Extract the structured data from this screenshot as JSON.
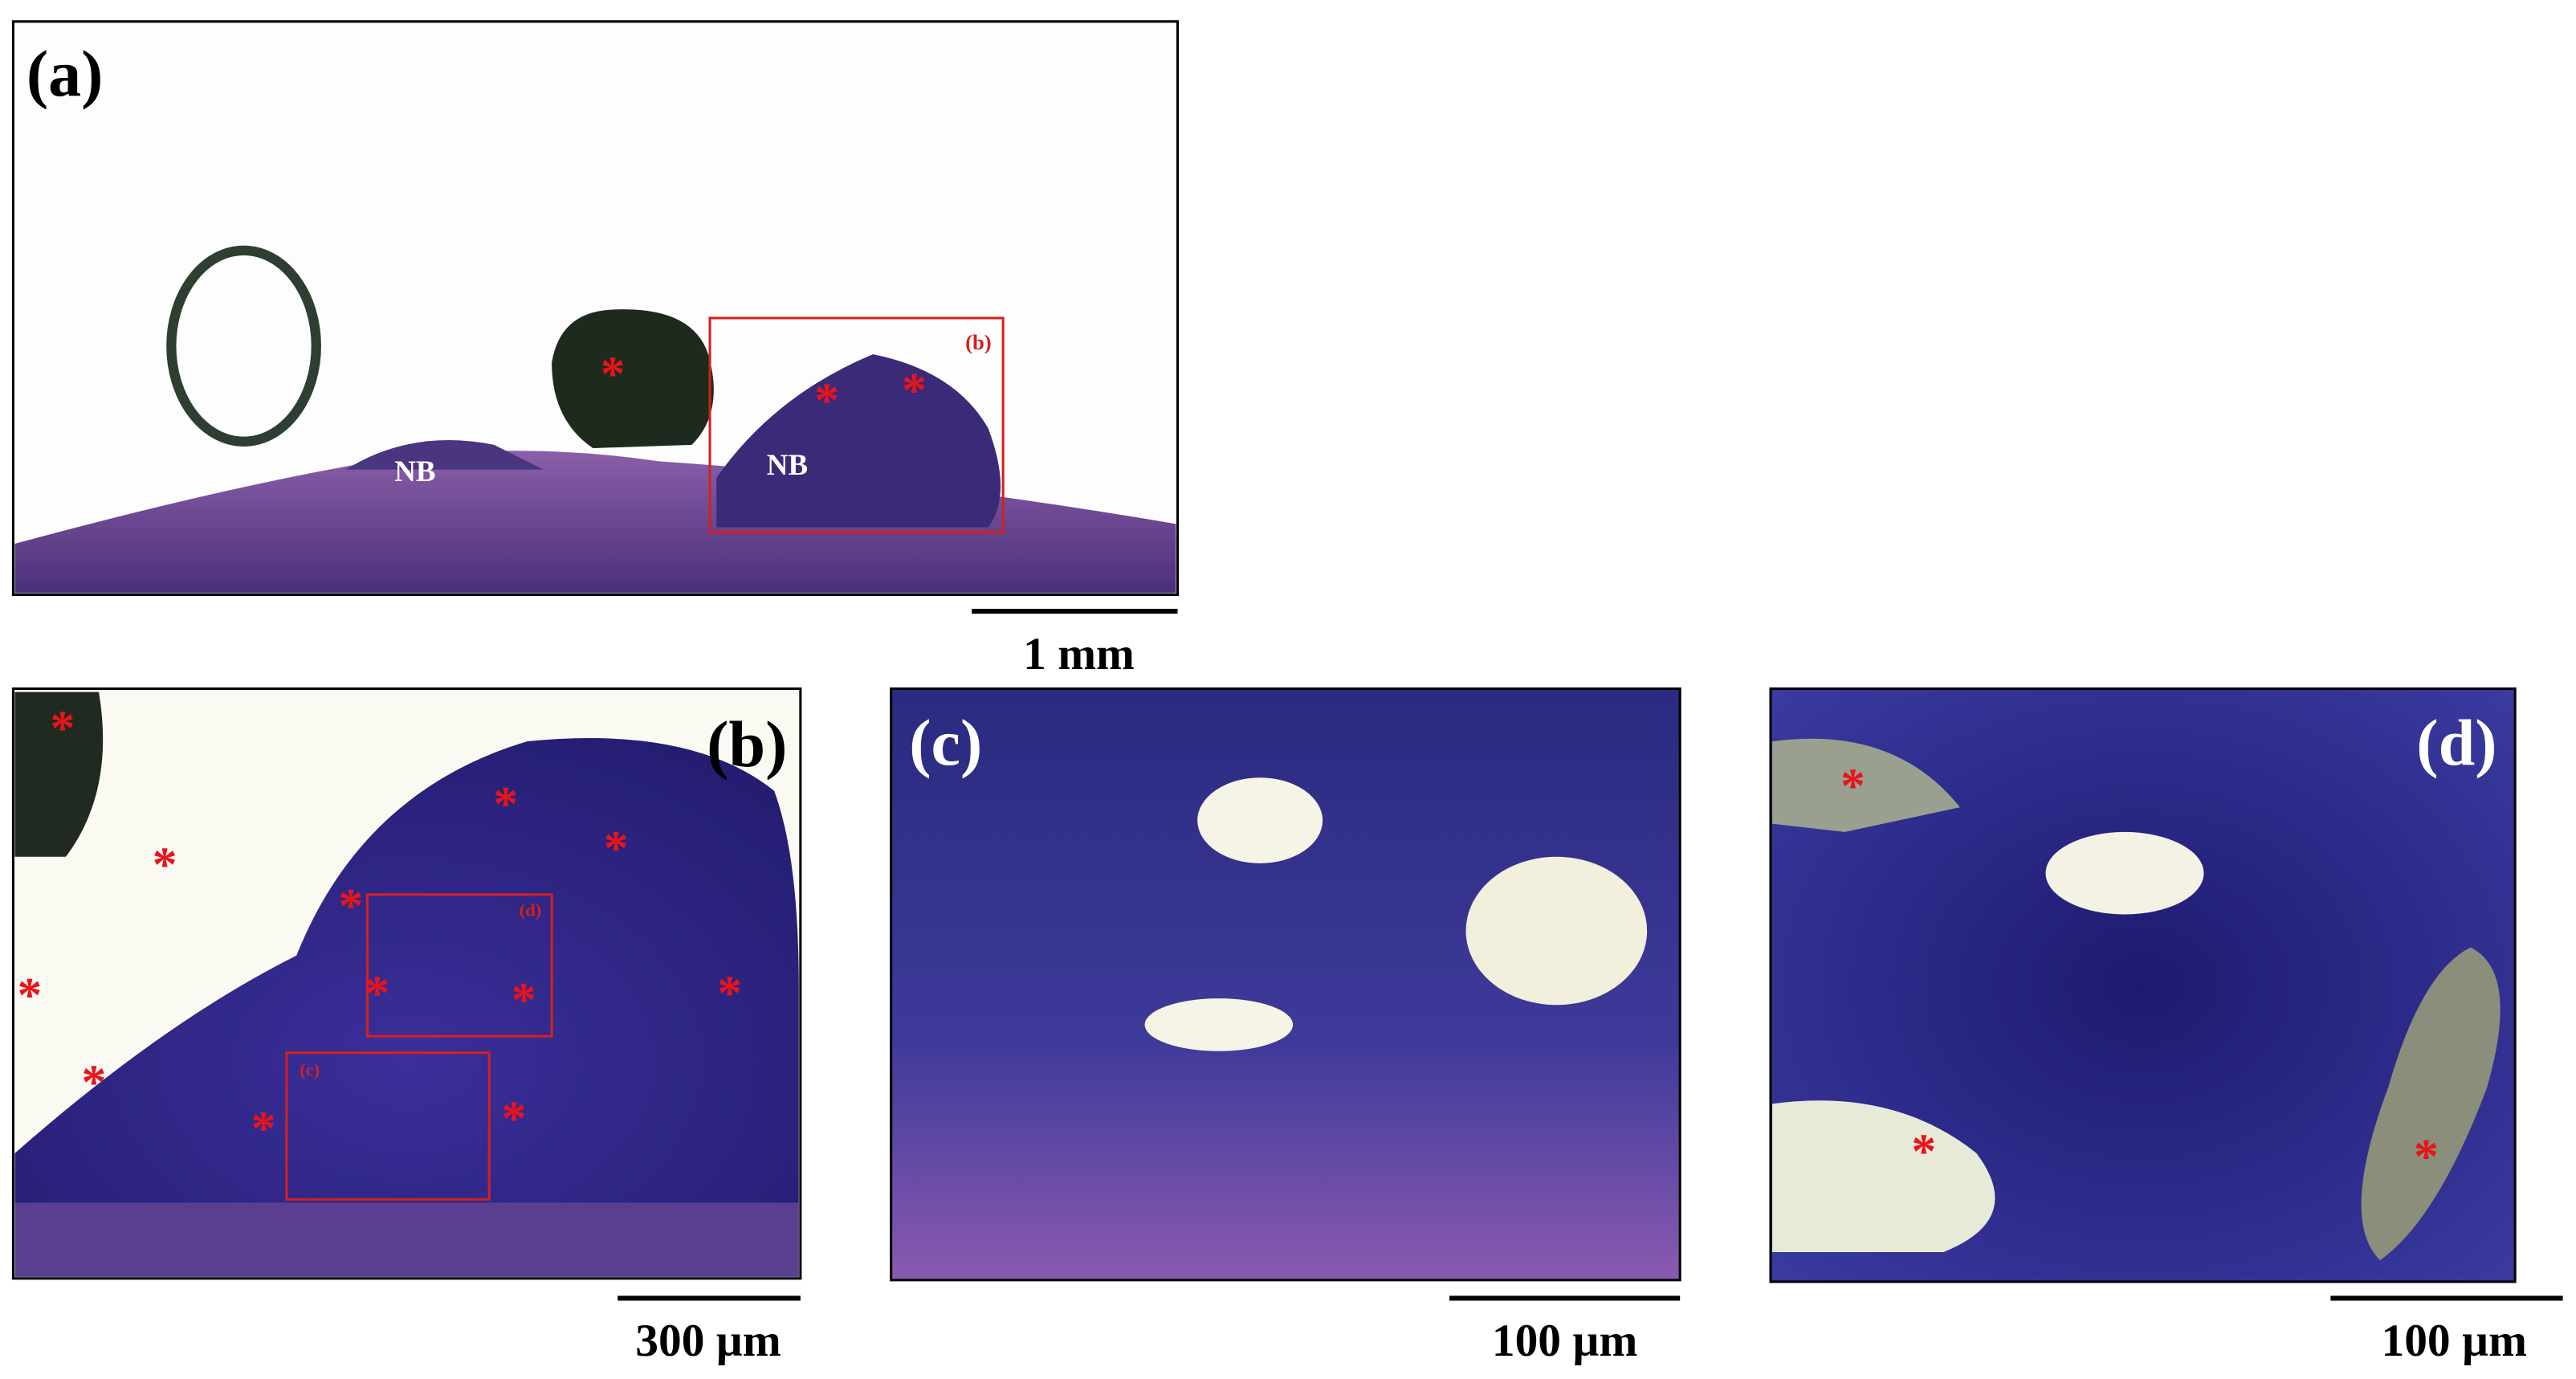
{
  "panels": [
    "(a)",
    "(b)",
    "(c)",
    "(d)"
  ],
  "tissue_label": "NB",
  "marker": "*",
  "inset_labels": [
    "(b)",
    "(c)",
    "(d)"
  ],
  "scale_bars": [
    "1 mm",
    "300 µm",
    "100 µm",
    "100 µm"
  ]
}
